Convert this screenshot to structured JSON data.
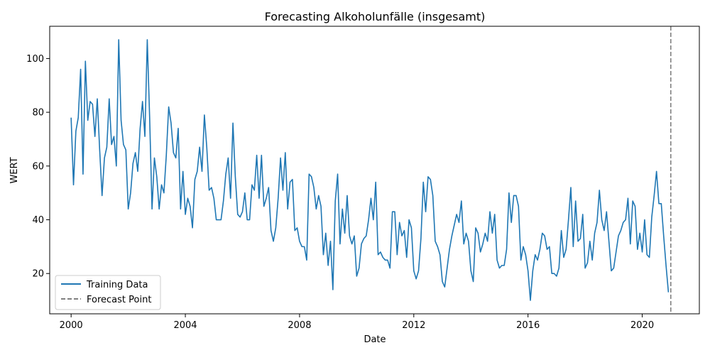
{
  "chart_data": {
    "type": "line",
    "title": "Forecasting Alkoholunfälle (insgesamt)",
    "xlabel": "Date",
    "ylabel": "WERT",
    "xlim": [
      1999.25,
      2022.0
    ],
    "ylim": [
      5.0,
      112.0
    ],
    "x_ticks": [
      2000,
      2004,
      2008,
      2012,
      2016,
      2020
    ],
    "x_tick_labels": [
      "2000",
      "2004",
      "2008",
      "2012",
      "2016",
      "2020"
    ],
    "y_ticks": [
      20,
      40,
      60,
      80,
      100
    ],
    "y_tick_labels": [
      "20",
      "40",
      "60",
      "80",
      "100"
    ],
    "grid": false,
    "legend_position": "lower-left",
    "series": [
      {
        "name": "Training Data",
        "color": "#1f77b4",
        "style": "solid",
        "x_start": "2000-01",
        "frequency": "monthly",
        "values": [
          78,
          53,
          73,
          78,
          96,
          57,
          99,
          77,
          84,
          83,
          71,
          85,
          66,
          49,
          63,
          67,
          85,
          68,
          71,
          60,
          107,
          77,
          68,
          66,
          44,
          50,
          61,
          65,
          58,
          74,
          84,
          71,
          107,
          78,
          44,
          63,
          56,
          44,
          53,
          50,
          64,
          82,
          76,
          65,
          63,
          74,
          44,
          58,
          42,
          48,
          45,
          37,
          55,
          58,
          67,
          58,
          79,
          67,
          51,
          52,
          48,
          40,
          40,
          40,
          47,
          57,
          63,
          48,
          76,
          56,
          42,
          41,
          43,
          50,
          40,
          40,
          53,
          51,
          64,
          48,
          64,
          45,
          48,
          52,
          36,
          32,
          37,
          48,
          63,
          51,
          65,
          44,
          54,
          55,
          36,
          37,
          32,
          30,
          30,
          25,
          57,
          56,
          52,
          44,
          49,
          45,
          27,
          35,
          23,
          32,
          14,
          47,
          57,
          31,
          44,
          35,
          49,
          34,
          31,
          34,
          19,
          22,
          31,
          33,
          34,
          40,
          48,
          40,
          54,
          27,
          28,
          26,
          25,
          25,
          22,
          43,
          43,
          27,
          39,
          34,
          36,
          26,
          40,
          37,
          21,
          18,
          21,
          33,
          54,
          43,
          56,
          55,
          49,
          32,
          30,
          27,
          17,
          15,
          22,
          29,
          34,
          38,
          42,
          39,
          47,
          31,
          35,
          32,
          21,
          17,
          37,
          35,
          28,
          31,
          35,
          32,
          43,
          35,
          42,
          25,
          22,
          23,
          23,
          29,
          50,
          39,
          49,
          49,
          45,
          25,
          30,
          27,
          21,
          10,
          21,
          27,
          25,
          29,
          35,
          34,
          29,
          30,
          20,
          20,
          19,
          22,
          36,
          26,
          29,
          40,
          52,
          30,
          47,
          32,
          33,
          42,
          22,
          24,
          32,
          25,
          35,
          39,
          51,
          40,
          36,
          43,
          32,
          21,
          22,
          28,
          34,
          36,
          39,
          40,
          48,
          31,
          47,
          45,
          29,
          35,
          28,
          40,
          27,
          26,
          41,
          49,
          58,
          46,
          46,
          34,
          23,
          13
        ]
      },
      {
        "name": "Forecast Point",
        "color": "#808080",
        "style": "dashed",
        "x": 2021.0
      }
    ]
  }
}
